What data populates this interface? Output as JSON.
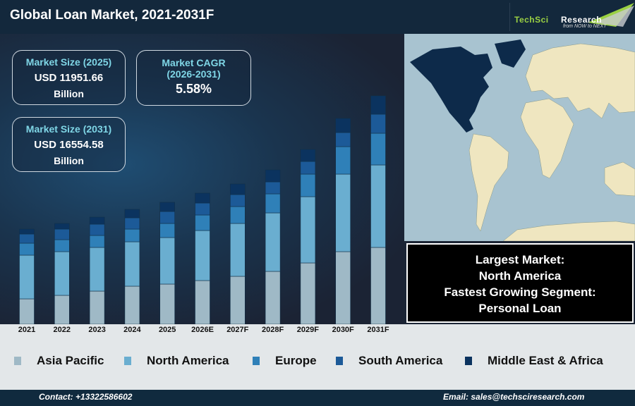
{
  "header": {
    "title": "Global Loan Market, 2021-2031F",
    "logo_text_1": "TechSci",
    "logo_text_2": "Research",
    "logo_tagline": "from NOW to NEXT"
  },
  "cards": {
    "market_size_2025": {
      "label": "Market Size (2025)",
      "value": "USD 11951.66",
      "unit": "Billion"
    },
    "cagr": {
      "label": "Market CAGR",
      "period": "(2026-2031)",
      "value": "5.58%"
    },
    "market_size_2031": {
      "label": "Market Size (2031)",
      "value": "USD 16554.58",
      "unit": "Billion"
    }
  },
  "info": {
    "line1": "Largest Market:",
    "line2": "North America",
    "line3": "Fastest Growing Segment:",
    "line4": "Personal Loan"
  },
  "footer": {
    "contact": "Contact: +13322586602",
    "email": "Email: sales@techsciresearch.com"
  },
  "map": {
    "highlight_region": "North America",
    "highlight_color": "#0d2a4a",
    "land_color": "#efe6c0",
    "ocean_color": "#a8c3d0"
  },
  "chart_data": {
    "type": "bar",
    "stacked": true,
    "title": "",
    "xlabel": "",
    "ylabel": "",
    "y_axis_shown": false,
    "grid": false,
    "legend_position": "bottom",
    "ylim": [
      0,
      340
    ],
    "categories": [
      "2021",
      "2022",
      "2023",
      "2024",
      "2025",
      "2026E",
      "2027F",
      "2028F",
      "2029F",
      "2030F",
      "2031F"
    ],
    "series": [
      {
        "name": "Asia Pacific",
        "color": "#9fb9c6",
        "values": [
          36,
          41,
          47,
          54,
          57,
          62,
          68,
          75,
          87,
          103,
          109
        ]
      },
      {
        "name": "North America",
        "color": "#6aaed0",
        "values": [
          62,
          62,
          62,
          63,
          66,
          71,
          75,
          83,
          94,
          110,
          117
        ]
      },
      {
        "name": "Europe",
        "color": "#2f80b8",
        "values": [
          17,
          17,
          17,
          18,
          20,
          22,
          24,
          27,
          32,
          39,
          45
        ]
      },
      {
        "name": "South America",
        "color": "#1c5a98",
        "values": [
          13,
          15,
          16,
          16,
          17,
          17,
          17,
          17,
          18,
          20,
          27
        ]
      },
      {
        "name": "Middle East & Africa",
        "color": "#0b335f",
        "values": [
          7,
          8,
          10,
          12,
          13,
          14,
          15,
          17,
          17,
          20,
          26
        ]
      }
    ]
  }
}
